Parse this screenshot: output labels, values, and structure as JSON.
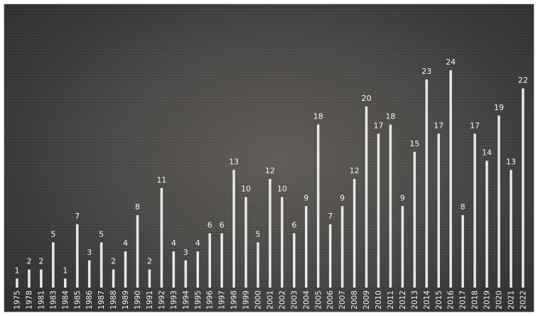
{
  "chart_data": {
    "type": "bar",
    "title": "",
    "xlabel": "",
    "ylabel": "",
    "ylim": [
      0,
      25
    ],
    "grid": true,
    "legend": "none",
    "colors": {
      "bar": "#e8e8e8",
      "label": "#f4f4f4"
    },
    "categories": [
      "1975",
      "1978",
      "1981",
      "1983",
      "1984",
      "1985",
      "1986",
      "1987",
      "1988",
      "1989",
      "1990",
      "1991",
      "1992",
      "1993",
      "1994",
      "1995",
      "1996",
      "1997",
      "1998",
      "1999",
      "2000",
      "2001",
      "2002",
      "2003",
      "2004",
      "2005",
      "2006",
      "2007",
      "2008",
      "2009",
      "2010",
      "2011",
      "2012",
      "2013",
      "2014",
      "2015",
      "2016",
      "2017",
      "2018",
      "2019",
      "2020",
      "2021",
      "2022"
    ],
    "values": [
      1,
      2,
      2,
      5,
      1,
      7,
      3,
      5,
      2,
      4,
      8,
      2,
      11,
      4,
      3,
      4,
      6,
      6,
      13,
      10,
      5,
      12,
      10,
      6,
      9,
      18,
      7,
      9,
      12,
      20,
      17,
      18,
      9,
      15,
      23,
      17,
      24,
      8,
      17,
      14,
      19,
      13,
      22
    ]
  }
}
